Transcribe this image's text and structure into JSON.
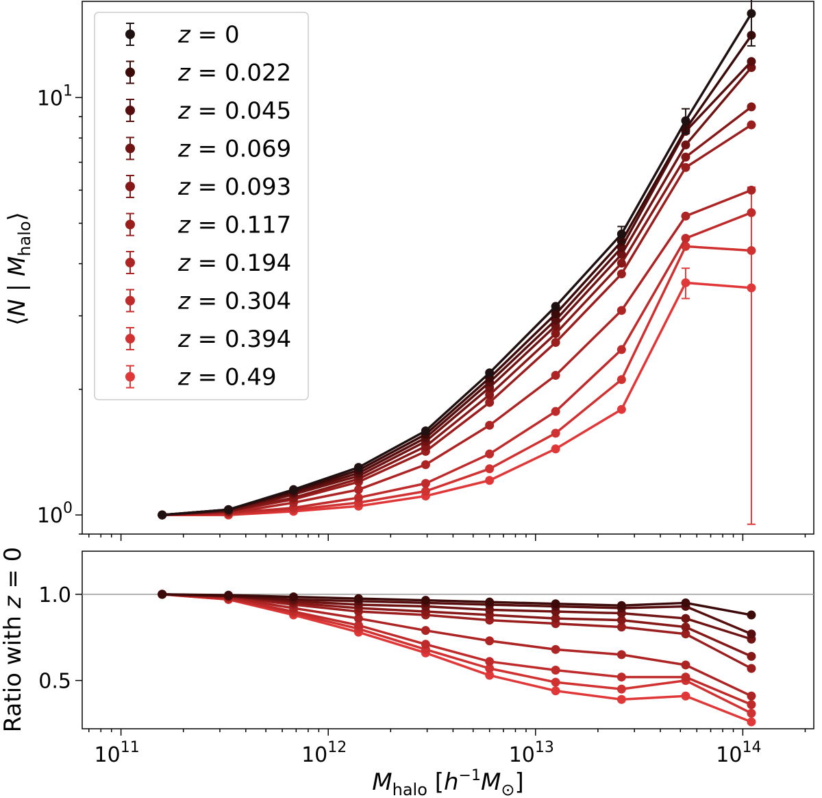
{
  "chart_data": [
    {
      "type": "line",
      "panel": "top",
      "ylabel": "⟨N | M_halo⟩",
      "xscale": "log",
      "yscale": "log",
      "xlim": [
        65000000000.0,
        220000000000000.0
      ],
      "ylim": [
        0.9,
        17.0
      ],
      "grid": false,
      "legend_position": "upper-left",
      "x_ticks": [
        {
          "value": 100000000000.0,
          "base": "10",
          "exp": "11"
        },
        {
          "value": 1000000000000.0,
          "base": "10",
          "exp": "12"
        },
        {
          "value": 10000000000000.0,
          "base": "10",
          "exp": "13"
        },
        {
          "value": 100000000000000.0,
          "base": "10",
          "exp": "14"
        }
      ],
      "y_ticks": [
        {
          "value": 1,
          "base": "10",
          "exp": "0"
        },
        {
          "value": 10,
          "base": "10",
          "exp": "1"
        }
      ],
      "x": [
        158000000000.0,
        330000000000.0,
        680000000000.0,
        1400000000000.0,
        2950000000000.0,
        6000000000000.0,
        12500000000000.0,
        26000000000000.0,
        53000000000000.0,
        110000000000000.0
      ],
      "series": [
        {
          "name": "z = 0",
          "color": "#1f1111",
          "values": [
            1.0,
            1.03,
            1.15,
            1.3,
            1.59,
            2.19,
            3.16,
            4.71,
            8.8,
            15.9
          ],
          "errors": [
            null,
            null,
            null,
            null,
            null,
            null,
            null,
            0.2,
            0.6,
            2.6
          ]
        },
        {
          "name": "z = 0.022",
          "color": "#3d0a0a",
          "values": [
            1.0,
            1.03,
            1.14,
            1.28,
            1.56,
            2.13,
            3.03,
            4.52,
            8.4,
            14.1
          ],
          "errors": [
            null,
            null,
            null,
            null,
            null,
            null,
            null,
            null,
            null,
            null
          ]
        },
        {
          "name": "z = 0.045",
          "color": "#570e0e",
          "values": [
            1.0,
            1.03,
            1.13,
            1.26,
            1.53,
            2.08,
            2.93,
            4.37,
            8.3,
            12.2
          ],
          "errors": [
            null,
            null,
            null,
            null,
            null,
            null,
            null,
            null,
            null,
            null
          ]
        },
        {
          "name": "z = 0.069",
          "color": "#701313",
          "values": [
            1.0,
            1.02,
            1.12,
            1.24,
            1.5,
            2.02,
            2.84,
            4.21,
            7.7,
            11.8
          ],
          "errors": [
            null,
            null,
            null,
            null,
            null,
            null,
            null,
            null,
            null,
            null
          ]
        },
        {
          "name": "z = 0.093",
          "color": "#861818",
          "values": [
            1.0,
            1.02,
            1.1,
            1.22,
            1.46,
            1.94,
            2.72,
            4.01,
            7.2,
            9.5
          ],
          "errors": [
            null,
            null,
            null,
            null,
            null,
            null,
            null,
            null,
            null,
            null
          ]
        },
        {
          "name": "z = 0.117",
          "color": "#9a1e1e",
          "values": [
            1.0,
            1.02,
            1.09,
            1.2,
            1.42,
            1.86,
            2.59,
            3.78,
            6.8,
            8.6
          ],
          "errors": [
            null,
            null,
            null,
            null,
            null,
            null,
            null,
            null,
            null,
            null
          ]
        },
        {
          "name": "z = 0.194",
          "color": "#ad2424",
          "values": [
            1.0,
            1.01,
            1.07,
            1.15,
            1.32,
            1.64,
            2.16,
            3.09,
            5.2,
            6.0
          ],
          "errors": [
            null,
            null,
            null,
            null,
            null,
            null,
            null,
            null,
            null,
            null
          ]
        },
        {
          "name": "z = 0.304",
          "color": "#bf2a2a",
          "values": [
            1.0,
            1.01,
            1.04,
            1.1,
            1.19,
            1.4,
            1.77,
            2.49,
            4.6,
            5.3
          ],
          "errors": [
            null,
            null,
            null,
            null,
            null,
            null,
            null,
            null,
            null,
            null
          ]
        },
        {
          "name": "z = 0.394",
          "color": "#d03131",
          "values": [
            1.0,
            1.0,
            1.03,
            1.07,
            1.14,
            1.29,
            1.57,
            2.11,
            4.4,
            4.3
          ],
          "errors": [
            null,
            null,
            null,
            null,
            null,
            null,
            null,
            null,
            null,
            null
          ]
        },
        {
          "name": "z = 0.49",
          "color": "#e03838",
          "values": [
            1.0,
            1.0,
            1.02,
            1.05,
            1.11,
            1.21,
            1.44,
            1.79,
            3.6,
            3.5
          ],
          "errors": [
            null,
            null,
            null,
            null,
            null,
            null,
            null,
            null,
            0.3,
            2.6
          ]
        }
      ]
    },
    {
      "type": "line",
      "panel": "bottom",
      "ylabel": "Ratio with z = 0",
      "xlabel": "M_halo [h^-1 M_⊙]",
      "xscale": "log",
      "yscale": "linear",
      "xlim": [
        65000000000.0,
        220000000000000.0
      ],
      "ylim": [
        0.22,
        1.25
      ],
      "reference_line": 1.0,
      "y_ticks": [
        {
          "value": 0.5,
          "label": "0.5"
        },
        {
          "value": 1.0,
          "label": "1.0"
        }
      ],
      "x": [
        158000000000.0,
        330000000000.0,
        680000000000.0,
        1400000000000.0,
        2950000000000.0,
        6000000000000.0,
        12500000000000.0,
        26000000000000.0,
        53000000000000.0,
        110000000000000.0
      ],
      "series": [
        {
          "name": "z = 0.022",
          "color": "#3d0a0a",
          "values": [
            1.0,
            0.995,
            0.985,
            0.975,
            0.965,
            0.955,
            0.945,
            0.935,
            0.95,
            0.88
          ]
        },
        {
          "name": "z = 0.045",
          "color": "#570e0e",
          "values": [
            1.0,
            0.99,
            0.97,
            0.96,
            0.95,
            0.94,
            0.93,
            0.92,
            0.93,
            0.77
          ]
        },
        {
          "name": "z = 0.069",
          "color": "#701313",
          "values": [
            1.0,
            0.99,
            0.96,
            0.94,
            0.93,
            0.91,
            0.9,
            0.89,
            0.86,
            0.74
          ]
        },
        {
          "name": "z = 0.093",
          "color": "#861818",
          "values": [
            1.0,
            0.99,
            0.95,
            0.92,
            0.9,
            0.88,
            0.86,
            0.85,
            0.81,
            0.64
          ]
        },
        {
          "name": "z = 0.117",
          "color": "#9a1e1e",
          "values": [
            1.0,
            0.985,
            0.94,
            0.9,
            0.88,
            0.85,
            0.83,
            0.81,
            0.77,
            0.57
          ]
        },
        {
          "name": "z = 0.194",
          "color": "#ad2424",
          "values": [
            1.0,
            0.98,
            0.92,
            0.86,
            0.79,
            0.73,
            0.68,
            0.65,
            0.59,
            0.41
          ]
        },
        {
          "name": "z = 0.304",
          "color": "#bf2a2a",
          "values": [
            1.0,
            0.975,
            0.9,
            0.82,
            0.71,
            0.61,
            0.56,
            0.52,
            0.52,
            0.36
          ]
        },
        {
          "name": "z = 0.394",
          "color": "#d03131",
          "values": [
            1.0,
            0.97,
            0.89,
            0.8,
            0.68,
            0.57,
            0.49,
            0.45,
            0.5,
            0.31
          ]
        },
        {
          "name": "z = 0.49",
          "color": "#e03838",
          "values": [
            1.0,
            0.97,
            0.88,
            0.78,
            0.66,
            0.53,
            0.44,
            0.39,
            0.41,
            0.26
          ]
        }
      ]
    }
  ]
}
